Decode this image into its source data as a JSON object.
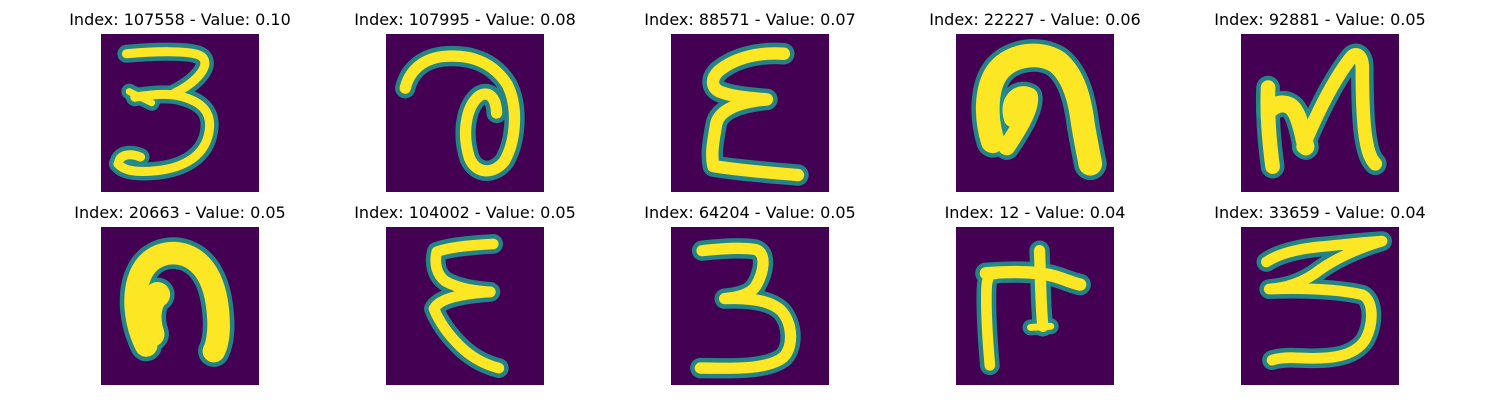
{
  "colors": {
    "background": "#440154",
    "stroke_glow": "#21918c",
    "stroke": "#fde725"
  },
  "chart_data": {
    "type": "image-grid",
    "title": "",
    "rows": 2,
    "cols": 5,
    "panels": [
      {
        "index": 107558,
        "value": 0.1,
        "title": "Index: 107558 - Value: 0.10",
        "glyph": "ze-ra"
      },
      {
        "index": 107995,
        "value": 0.08,
        "title": "Index: 107995 - Value: 0.08",
        "glyph": "loop-a"
      },
      {
        "index": 88571,
        "value": 0.07,
        "title": "Index: 88571 - Value: 0.07",
        "glyph": "epsilon"
      },
      {
        "index": 22227,
        "value": 0.06,
        "title": "Index: 22227 - Value: 0.06",
        "glyph": "arch-thick"
      },
      {
        "index": 92881,
        "value": 0.05,
        "title": "Index: 92881 - Value: 0.05",
        "glyph": "n-shape"
      },
      {
        "index": 20663,
        "value": 0.05,
        "title": "Index: 20663 - Value: 0.05",
        "glyph": "arch-round"
      },
      {
        "index": 104002,
        "value": 0.05,
        "title": "Index: 104002 - Value: 0.05",
        "glyph": "epsilon-thin"
      },
      {
        "index": 64204,
        "value": 0.05,
        "title": "Index: 64204 - Value: 0.05",
        "glyph": "three"
      },
      {
        "index": 12,
        "value": 0.04,
        "title": "Index: 12 - Value: 0.04",
        "glyph": "t-bar"
      },
      {
        "index": 33659,
        "value": 0.04,
        "title": "Index: 33659 - Value: 0.04",
        "glyph": "three-b"
      }
    ]
  }
}
